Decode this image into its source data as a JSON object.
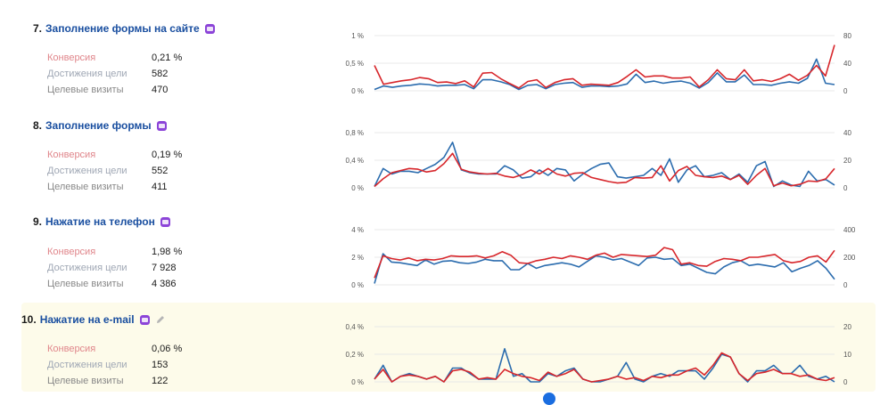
{
  "colors": {
    "conversion_line": "#d7262b",
    "visits_line": "#2b6cae",
    "grid": "#e8e8e8",
    "title": "#1a4fa0"
  },
  "goals": [
    {
      "number": "7.",
      "title": "Заполнение формы на сайте",
      "icon": "form-goal-icon",
      "metrics": [
        {
          "label": "Конверсия",
          "value": "0,21 %"
        },
        {
          "label": "Достижения цели",
          "value": "582"
        },
        {
          "label": "Целевые визиты",
          "value": "470"
        }
      ],
      "left_axis": [
        "1 %",
        "0,5 %",
        "0 %"
      ],
      "right_axis": [
        "80",
        "40",
        "0"
      ],
      "left_max": 1,
      "right_max": 80,
      "series_conversion": [
        0.46,
        0.12,
        0.15,
        0.18,
        0.2,
        0.24,
        0.22,
        0.15,
        0.16,
        0.13,
        0.18,
        0.07,
        0.32,
        0.33,
        0.22,
        0.13,
        0.05,
        0.17,
        0.2,
        0.06,
        0.15,
        0.2,
        0.22,
        0.1,
        0.12,
        0.11,
        0.1,
        0.15,
        0.26,
        0.38,
        0.25,
        0.27,
        0.27,
        0.23,
        0.23,
        0.25,
        0.07,
        0.2,
        0.38,
        0.22,
        0.2,
        0.38,
        0.18,
        0.2,
        0.17,
        0.22,
        0.3,
        0.19,
        0.28,
        0.46,
        0.27,
        0.83
      ],
      "series_visits": [
        2,
        7,
        5,
        7,
        8,
        10,
        9,
        7,
        8,
        8,
        9,
        3,
        16,
        16,
        13,
        9,
        2,
        8,
        9,
        3,
        9,
        11,
        12,
        5,
        7,
        7,
        6,
        7,
        10,
        24,
        12,
        14,
        11,
        13,
        14,
        11,
        4,
        12,
        26,
        13,
        13,
        23,
        9,
        9,
        8,
        11,
        13,
        11,
        18,
        46,
        11,
        9
      ]
    },
    {
      "number": "8.",
      "title": "Заполнение формы",
      "icon": "form-goal-icon",
      "metrics": [
        {
          "label": "Конверсия",
          "value": "0,19 %"
        },
        {
          "label": "Достижения цели",
          "value": "552"
        },
        {
          "label": "Целевые визиты",
          "value": "411"
        }
      ],
      "left_axis": [
        "0,8 %",
        "0,4 %",
        "0 %"
      ],
      "right_axis": [
        "40",
        "20",
        "0"
      ],
      "left_max": 0.8,
      "right_max": 40,
      "series_conversion": [
        0.02,
        0.13,
        0.22,
        0.25,
        0.28,
        0.27,
        0.23,
        0.25,
        0.35,
        0.5,
        0.27,
        0.23,
        0.21,
        0.2,
        0.21,
        0.17,
        0.15,
        0.19,
        0.26,
        0.2,
        0.28,
        0.2,
        0.17,
        0.21,
        0.22,
        0.15,
        0.12,
        0.09,
        0.07,
        0.08,
        0.15,
        0.14,
        0.15,
        0.32,
        0.1,
        0.25,
        0.31,
        0.18,
        0.16,
        0.15,
        0.17,
        0.12,
        0.18,
        0.05,
        0.18,
        0.28,
        0.03,
        0.07,
        0.03,
        0.05,
        0.1,
        0.09,
        0.13,
        0.28
      ],
      "series_visits": [
        1,
        14,
        10,
        12,
        12,
        11,
        14,
        17,
        22,
        33,
        13,
        11,
        10,
        10,
        10,
        16,
        13,
        7,
        8,
        13,
        9,
        14,
        13,
        5,
        10,
        14,
        17,
        18,
        8,
        7,
        8,
        9,
        14,
        9,
        21,
        4,
        13,
        16,
        8,
        9,
        11,
        6,
        10,
        4,
        16,
        19,
        1,
        5,
        2,
        1,
        12,
        5,
        6,
        2
      ]
    },
    {
      "number": "9.",
      "title": "Нажатие на телефон",
      "icon": "phone-goal-icon",
      "metrics": [
        {
          "label": "Конверсия",
          "value": "1,98 %"
        },
        {
          "label": "Достижения цели",
          "value": "7 928"
        },
        {
          "label": "Целевые визиты",
          "value": "4 386"
        }
      ],
      "left_axis": [
        "4 %",
        "2 %",
        "0 %"
      ],
      "right_axis": [
        "400",
        "200",
        "0"
      ],
      "left_max": 4,
      "right_max": 400,
      "series_conversion": [
        0.5,
        2.1,
        1.9,
        1.8,
        1.95,
        1.75,
        1.85,
        1.8,
        1.9,
        2.1,
        2.05,
        2.05,
        2.1,
        1.95,
        2.1,
        2.4,
        2.15,
        1.6,
        1.55,
        1.75,
        1.85,
        2.0,
        1.9,
        2.1,
        2.0,
        1.85,
        2.15,
        2.3,
        2.0,
        2.2,
        2.15,
        2.1,
        2.05,
        2.15,
        2.7,
        2.55,
        1.5,
        1.6,
        1.4,
        1.35,
        1.7,
        1.9,
        1.85,
        1.75,
        2.0,
        2.0,
        2.1,
        2.2,
        1.75,
        1.6,
        1.7,
        2.0,
        2.1,
        1.65,
        2.5
      ],
      "series_visits": [
        10,
        225,
        165,
        160,
        150,
        140,
        180,
        150,
        170,
        175,
        160,
        155,
        165,
        185,
        175,
        175,
        110,
        110,
        155,
        120,
        140,
        150,
        160,
        150,
        130,
        170,
        210,
        200,
        180,
        190,
        165,
        140,
        195,
        200,
        185,
        190,
        140,
        150,
        120,
        90,
        80,
        130,
        160,
        175,
        140,
        150,
        140,
        130,
        160,
        95,
        120,
        140,
        175,
        120,
        40
      ]
    },
    {
      "number": "10.",
      "title": "Нажатие на e-mail",
      "icon": "email-goal-icon",
      "metrics": [
        {
          "label": "Конверсия",
          "value": "0,06 %"
        },
        {
          "label": "Достижения цели",
          "value": "153"
        },
        {
          "label": "Целевые визиты",
          "value": "122"
        }
      ],
      "left_axis": [
        "0,4 %",
        "0,2 %",
        "0 %"
      ],
      "right_axis": [
        "20",
        "10",
        "0"
      ],
      "left_max": 0.4,
      "right_max": 20,
      "series_conversion": [
        0.02,
        0.09,
        0.0,
        0.04,
        0.05,
        0.04,
        0.02,
        0.04,
        0.0,
        0.08,
        0.09,
        0.07,
        0.02,
        0.03,
        0.02,
        0.09,
        0.06,
        0.04,
        0.03,
        0.01,
        0.07,
        0.04,
        0.06,
        0.09,
        0.02,
        0.0,
        0.01,
        0.02,
        0.04,
        0.02,
        0.03,
        0.01,
        0.04,
        0.03,
        0.05,
        0.05,
        0.08,
        0.1,
        0.05,
        0.12,
        0.21,
        0.18,
        0.06,
        0.01,
        0.06,
        0.07,
        0.09,
        0.06,
        0.06,
        0.04,
        0.05,
        0.02,
        0.01,
        0.03
      ],
      "series_visits": [
        1,
        6,
        0,
        2,
        3,
        2,
        1,
        2,
        0,
        5,
        5,
        3,
        1,
        1,
        1,
        12,
        2,
        3,
        0,
        0,
        3,
        2,
        4,
        5,
        1,
        0,
        0,
        1,
        2,
        7,
        1,
        0,
        2,
        3,
        2,
        4,
        4,
        4,
        1,
        5,
        10,
        9,
        3,
        0,
        4,
        4,
        6,
        3,
        3,
        6,
        2,
        1,
        2,
        0
      ]
    }
  ]
}
